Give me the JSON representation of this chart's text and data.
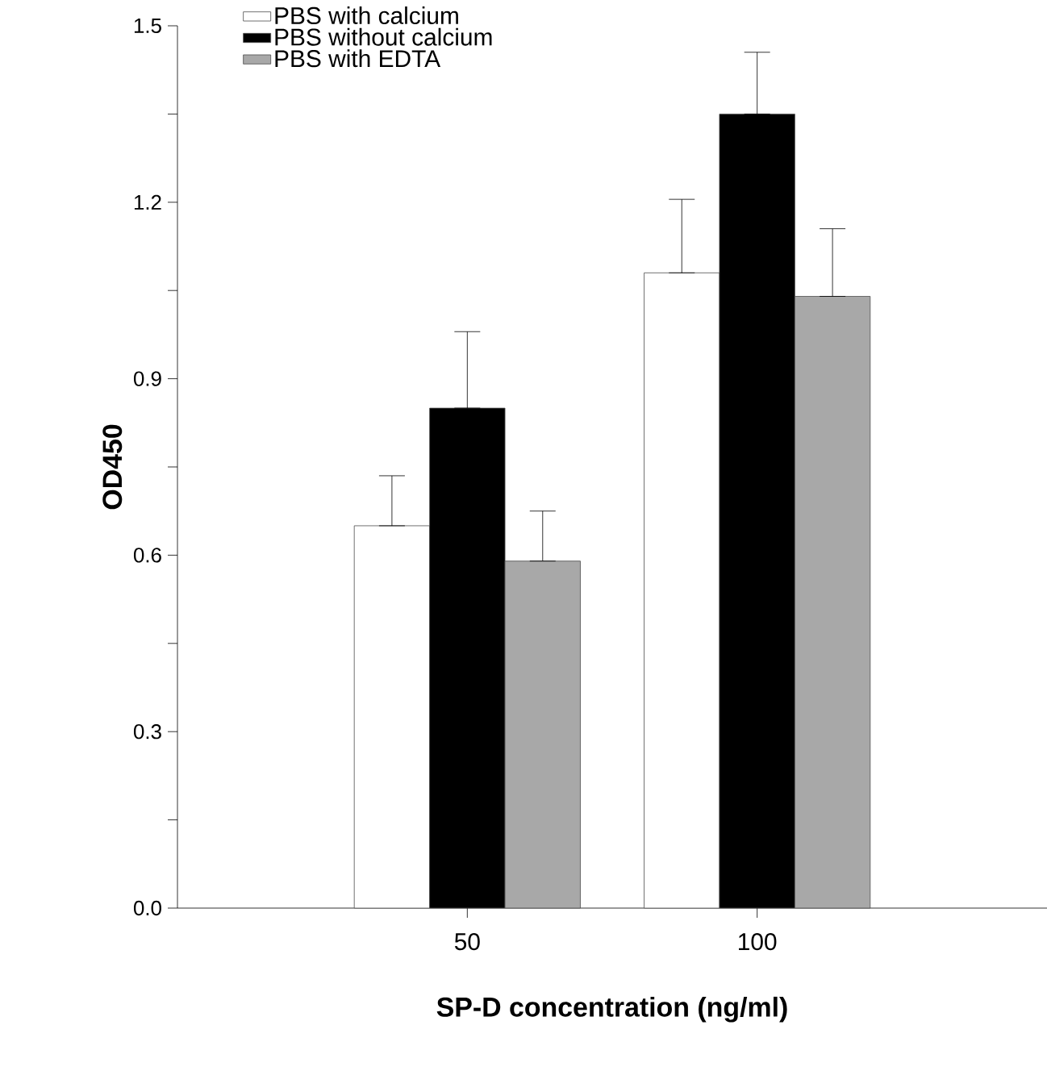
{
  "chart_data": {
    "type": "bar",
    "xlabel": "SP-D concentration (ng/ml)",
    "ylabel": "OD450",
    "categories": [
      "50",
      "100"
    ],
    "series": [
      {
        "name": "PBS with calcium",
        "color": "#ffffff",
        "values": [
          0.65,
          1.08
        ],
        "errors": [
          [
            0.65,
            0.735
          ],
          [
            1.08,
            1.205
          ]
        ]
      },
      {
        "name": "PBS without calcium",
        "color": "#000000",
        "values": [
          0.85,
          1.35
        ],
        "errors": [
          [
            0.85,
            0.98
          ],
          [
            1.35,
            1.455
          ]
        ]
      },
      {
        "name": "PBS with EDTA",
        "color": "#a8a8a8",
        "values": [
          0.59,
          1.04
        ],
        "errors": [
          [
            0.59,
            0.675
          ],
          [
            1.04,
            1.155
          ]
        ]
      }
    ],
    "ylim": [
      0,
      1.5
    ],
    "yticks": [
      {
        "value": 0,
        "label": "0.0"
      },
      {
        "value": 0.15,
        "label": null
      },
      0.3,
      {
        "value": 0.45,
        "label": null
      },
      0.6,
      {
        "value": 0.75,
        "label": null
      },
      0.9,
      {
        "value": 1.05,
        "label": null
      },
      1.2,
      {
        "value": 1.35,
        "label": null
      },
      1.5
    ],
    "legend": "top left",
    "grid": false
  }
}
